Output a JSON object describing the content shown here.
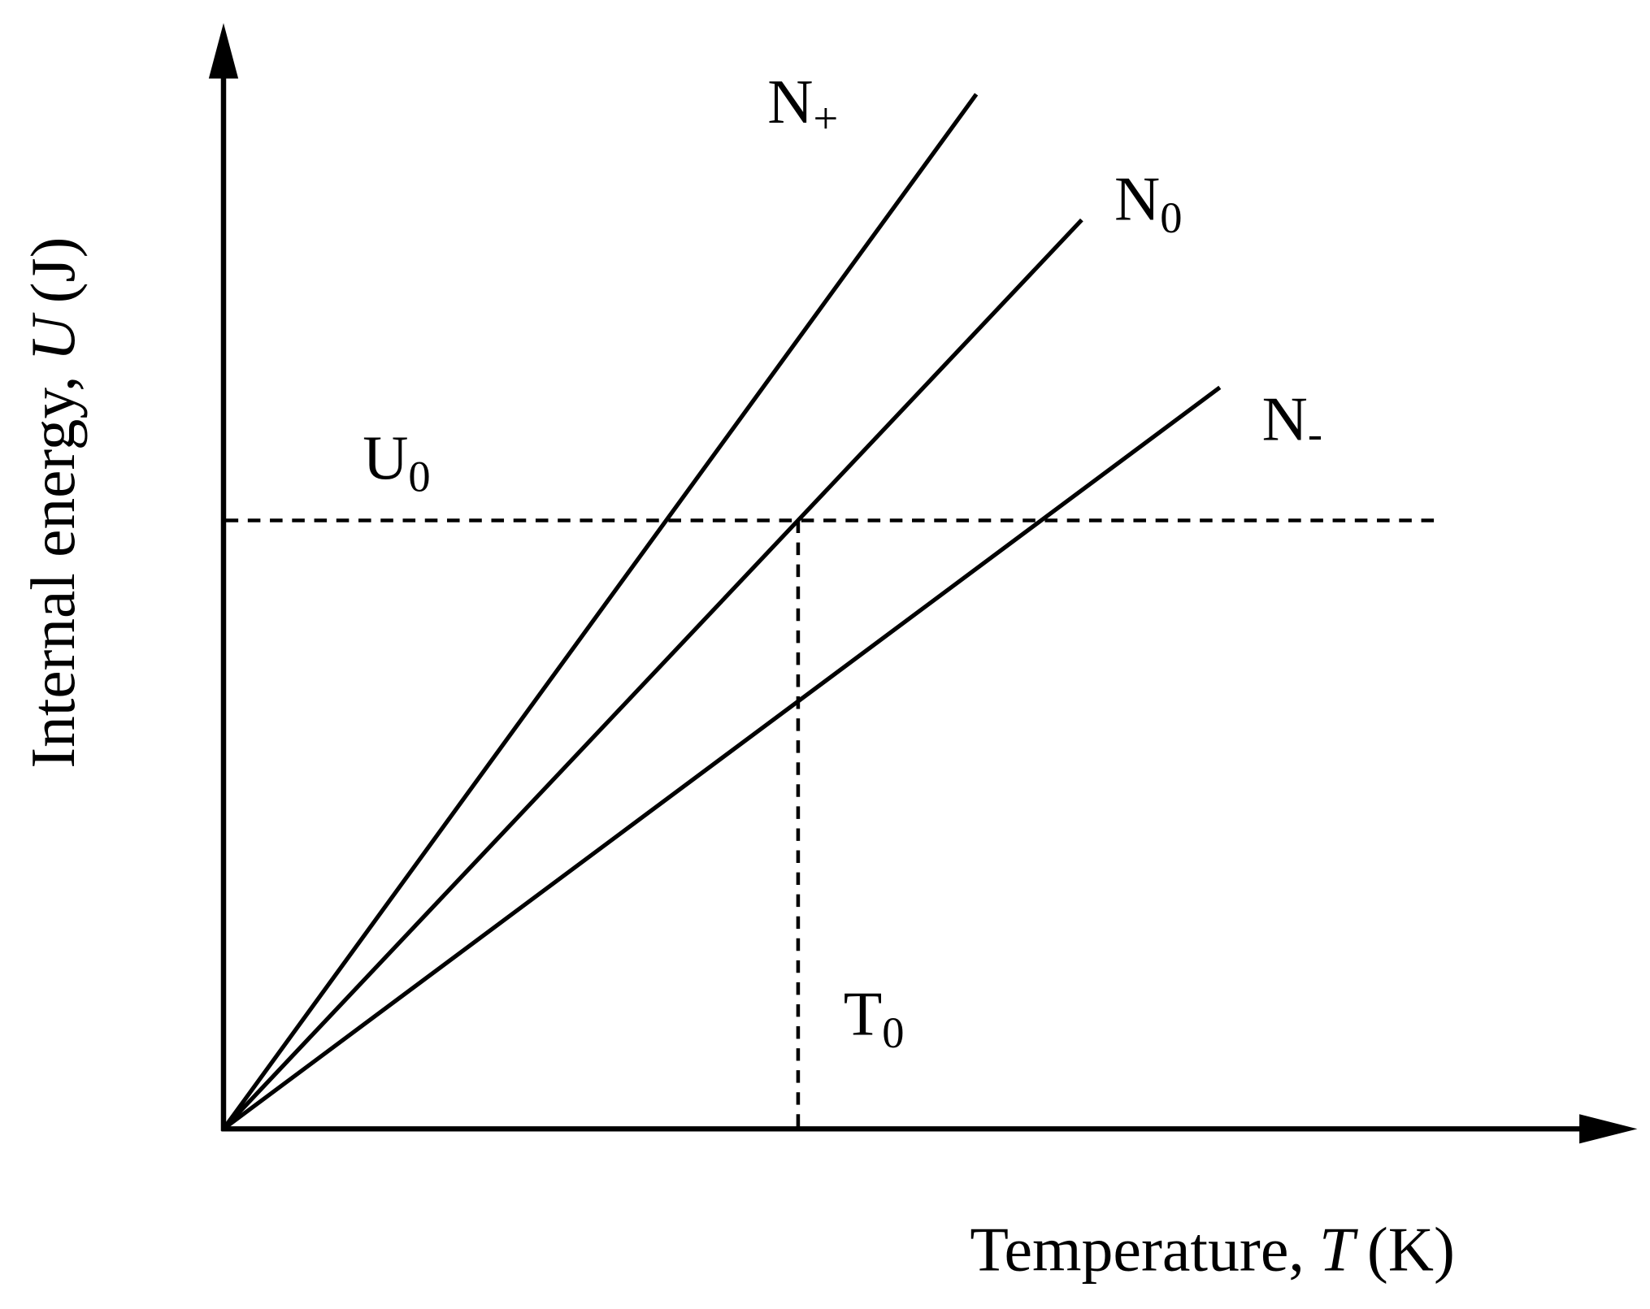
{
  "axes": {
    "y_label": {
      "text": "Internal energy,",
      "symbol": "U",
      "unit": "(J)"
    },
    "x_label": {
      "text": "Temperature,",
      "symbol": "T",
      "unit": "(K)"
    }
  },
  "lines": [
    {
      "label": "N",
      "subscript": "+"
    },
    {
      "label": "N",
      "subscript": "0"
    },
    {
      "label": "N",
      "subscript": "-"
    }
  ],
  "markers": [
    {
      "label": "U",
      "subscript": "0"
    },
    {
      "label": "T",
      "subscript": "0"
    }
  ]
}
